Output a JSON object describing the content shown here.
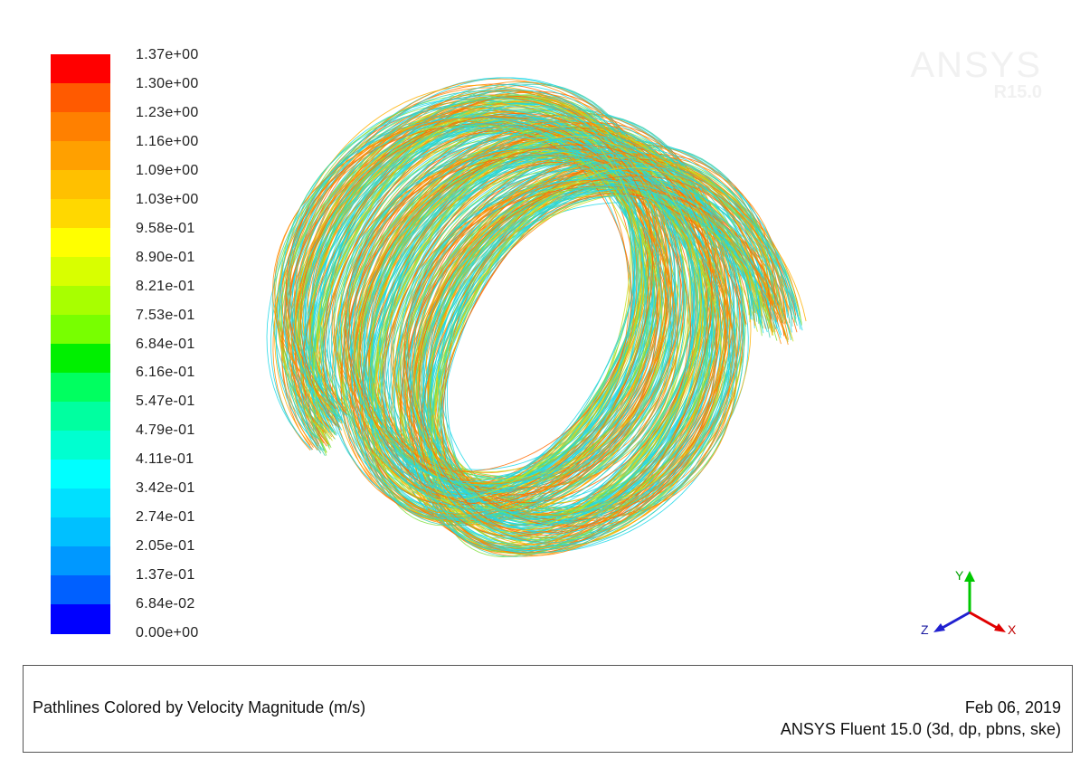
{
  "watermark": {
    "brand": "ANSYS",
    "release": "R15.0"
  },
  "colormap": {
    "ticks": [
      "1.37e+00",
      "1.30e+00",
      "1.23e+00",
      "1.16e+00",
      "1.09e+00",
      "1.03e+00",
      "9.58e-01",
      "8.90e-01",
      "8.21e-01",
      "7.53e-01",
      "6.84e-01",
      "6.16e-01",
      "5.47e-01",
      "4.79e-01",
      "4.11e-01",
      "3.42e-01",
      "2.74e-01",
      "2.05e-01",
      "1.37e-01",
      "6.84e-02",
      "0.00e+00"
    ],
    "colors": [
      "#ff0000",
      "#ff5a00",
      "#ff8000",
      "#ffa000",
      "#ffc000",
      "#ffd800",
      "#ffff00",
      "#d8ff00",
      "#a8ff00",
      "#78ff00",
      "#00f000",
      "#00ff60",
      "#00ffa0",
      "#00ffd0",
      "#00ffff",
      "#00e0ff",
      "#00c0ff",
      "#0098ff",
      "#0060ff",
      "#0000ff"
    ]
  },
  "scene": {
    "description_color_high": "#ff8c00",
    "description_color_low": "#20d8e8",
    "turns": 2.6
  },
  "axes": {
    "x_label": "X",
    "y_label": "Y",
    "z_label": "Z",
    "x_color": "#e00000",
    "y_color": "#00c800",
    "z_color": "#2020d0"
  },
  "caption": {
    "title": "Pathlines Colored by Velocity Magnitude (m/s)",
    "date": "Feb 06, 2019",
    "version": "ANSYS Fluent 15.0 (3d, dp, pbns, ske)"
  }
}
